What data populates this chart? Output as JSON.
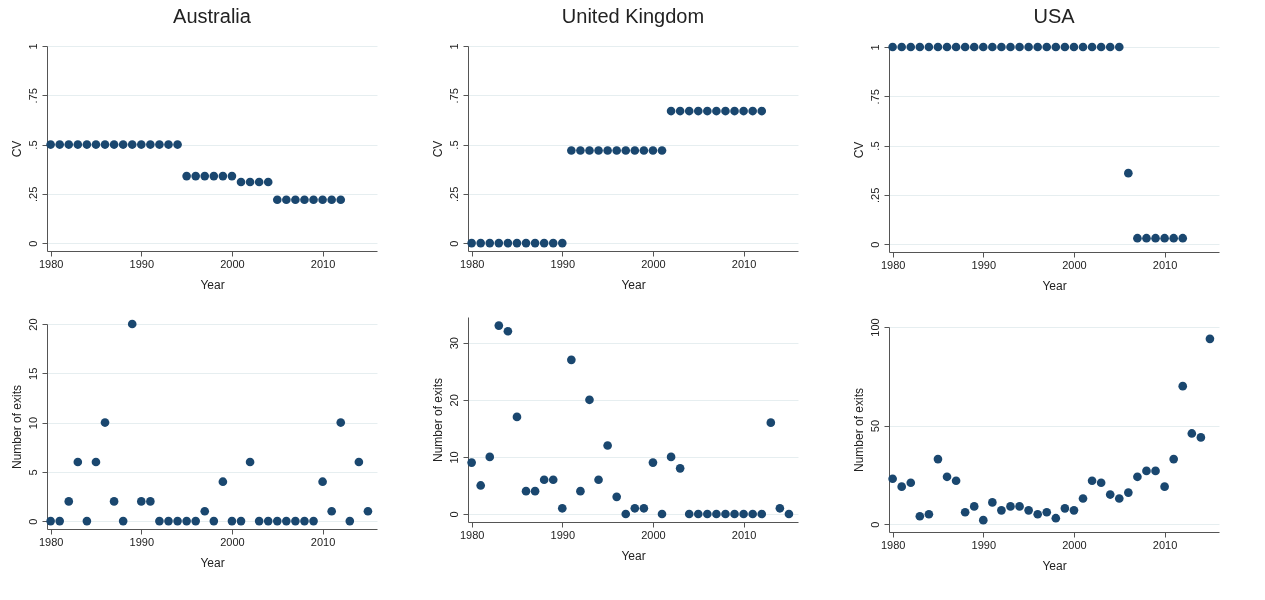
{
  "chart_data": [
    {
      "type": "scatter",
      "title": "Australia",
      "xlabel": "Year",
      "ylabel": "CV",
      "xlim": [
        1979.6,
        2016
      ],
      "xticks": [
        1980,
        1990,
        2000,
        2010
      ],
      "ylim": [
        -0.04,
        1
      ],
      "yticks": [
        0,
        {
          "value": 0.25,
          "label": ".25"
        },
        {
          "value": 0.5,
          "label": ".5"
        },
        {
          "value": 0.75,
          "label": ".75"
        },
        1
      ],
      "grid": "y",
      "marker": "circle",
      "x": [
        1980,
        1981,
        1982,
        1983,
        1984,
        1985,
        1986,
        1987,
        1988,
        1989,
        1990,
        1991,
        1992,
        1993,
        1994,
        1995,
        1996,
        1997,
        1998,
        1999,
        2000,
        2001,
        2002,
        2003,
        2004,
        2005,
        2006,
        2007,
        2008,
        2009,
        2010,
        2011,
        2012
      ],
      "series": [
        {
          "color": "#1a476f",
          "values": [
            0.5,
            0.5,
            0.5,
            0.5,
            0.5,
            0.5,
            0.5,
            0.5,
            0.5,
            0.5,
            0.5,
            0.5,
            0.5,
            0.5,
            0.5,
            0.34,
            0.34,
            0.34,
            0.34,
            0.34,
            0.34,
            0.31,
            0.31,
            0.31,
            0.31,
            0.22,
            0.22,
            0.22,
            0.22,
            0.22,
            0.22,
            0.22,
            0.22
          ]
        }
      ]
    },
    {
      "type": "scatter",
      "title": "United Kingdom",
      "xlabel": "Year",
      "ylabel": "CV",
      "xlim": [
        1979.6,
        2016
      ],
      "xticks": [
        1980,
        1990,
        2000,
        2010
      ],
      "ylim": [
        -0.04,
        1
      ],
      "yticks": [
        0,
        {
          "value": 0.25,
          "label": ".25"
        },
        {
          "value": 0.5,
          "label": ".5"
        },
        {
          "value": 0.75,
          "label": ".75"
        },
        1
      ],
      "grid": "y",
      "marker": "circle",
      "x": [
        1980,
        1981,
        1982,
        1983,
        1984,
        1985,
        1986,
        1987,
        1988,
        1989,
        1990,
        1991,
        1992,
        1993,
        1994,
        1995,
        1996,
        1997,
        1998,
        1999,
        2000,
        2001,
        2002,
        2003,
        2004,
        2005,
        2006,
        2007,
        2008,
        2009,
        2010,
        2011,
        2012
      ],
      "series": [
        {
          "color": "#1a476f",
          "values": [
            0,
            0,
            0,
            0,
            0,
            0,
            0,
            0,
            0,
            0,
            0,
            0.47,
            0.47,
            0.47,
            0.47,
            0.47,
            0.47,
            0.47,
            0.47,
            0.47,
            0.47,
            0.47,
            0.67,
            0.67,
            0.67,
            0.67,
            0.67,
            0.67,
            0.67,
            0.67,
            0.67,
            0.67,
            0.67
          ]
        }
      ]
    },
    {
      "type": "scatter",
      "title": "USA",
      "xlabel": "Year",
      "ylabel": "CV",
      "xlim": [
        1979.6,
        2016
      ],
      "xticks": [
        1980,
        1990,
        2000,
        2010
      ],
      "ylim": [
        -0.04,
        1
      ],
      "yticks": [
        0,
        {
          "value": 0.25,
          "label": ".25"
        },
        {
          "value": 0.5,
          "label": ".5"
        },
        {
          "value": 0.75,
          "label": ".75"
        },
        1
      ],
      "grid": "y",
      "marker": "circle",
      "x": [
        1980,
        1981,
        1982,
        1983,
        1984,
        1985,
        1986,
        1987,
        1988,
        1989,
        1990,
        1991,
        1992,
        1993,
        1994,
        1995,
        1996,
        1997,
        1998,
        1999,
        2000,
        2001,
        2002,
        2003,
        2004,
        2005,
        2006,
        2007,
        2008,
        2009,
        2010,
        2011,
        2012
      ],
      "series": [
        {
          "color": "#1a476f",
          "values": [
            1,
            1,
            1,
            1,
            1,
            1,
            1,
            1,
            1,
            1,
            1,
            1,
            1,
            1,
            1,
            1,
            1,
            1,
            1,
            1,
            1,
            1,
            1,
            1,
            1,
            1,
            0.36,
            0.03,
            0.03,
            0.03,
            0.03,
            0.03,
            0.03
          ]
        }
      ]
    },
    {
      "type": "scatter",
      "xlabel": "Year",
      "ylabel": "Number of exits",
      "xlim": [
        1979.6,
        2016
      ],
      "xticks": [
        1980,
        1990,
        2000,
        2010
      ],
      "ylim": [
        -0.8,
        20
      ],
      "yticks": [
        0,
        5,
        10,
        15,
        20
      ],
      "grid": "y",
      "marker": "circle",
      "x": [
        1980,
        1981,
        1982,
        1983,
        1984,
        1985,
        1986,
        1987,
        1988,
        1989,
        1990,
        1991,
        1992,
        1993,
        1994,
        1995,
        1996,
        1997,
        1998,
        1999,
        2000,
        2001,
        2002,
        2003,
        2004,
        2005,
        2006,
        2007,
        2008,
        2009,
        2010,
        2011,
        2012,
        2013,
        2014,
        2015
      ],
      "series": [
        {
          "color": "#1a476f",
          "values": [
            0,
            0,
            2,
            6,
            0,
            6,
            10,
            2,
            0,
            20,
            2,
            2,
            0,
            0,
            0,
            0,
            0,
            1,
            0,
            4,
            0,
            0,
            6,
            0,
            0,
            0,
            0,
            0,
            0,
            0,
            4,
            1,
            10,
            0,
            6,
            1
          ]
        }
      ]
    },
    {
      "type": "scatter",
      "xlabel": "Year",
      "ylabel": "Number of exits",
      "xlim": [
        1979.6,
        2016
      ],
      "xticks": [
        1980,
        1990,
        2000,
        2010
      ],
      "ylim": [
        -1.4,
        34.5
      ],
      "yticks": [
        0,
        10,
        20,
        30
      ],
      "grid": "y",
      "marker": "circle",
      "x": [
        1980,
        1981,
        1982,
        1983,
        1984,
        1985,
        1986,
        1987,
        1988,
        1989,
        1990,
        1991,
        1992,
        1993,
        1994,
        1995,
        1996,
        1997,
        1998,
        1999,
        2000,
        2001,
        2002,
        2003,
        2004,
        2005,
        2006,
        2007,
        2008,
        2009,
        2010,
        2011,
        2012,
        2013,
        2014,
        2015
      ],
      "series": [
        {
          "color": "#1a476f",
          "values": [
            9,
            5,
            10,
            33,
            32,
            17,
            4,
            4,
            6,
            6,
            1,
            27,
            4,
            20,
            6,
            12,
            3,
            0,
            1,
            1,
            9,
            0,
            10,
            8,
            0,
            0,
            0,
            0,
            0,
            0,
            0,
            0,
            0,
            16,
            1,
            0
          ]
        }
      ]
    },
    {
      "type": "scatter",
      "xlabel": "Year",
      "ylabel": "Number of exits",
      "xlim": [
        1979.6,
        2016
      ],
      "xticks": [
        1980,
        1990,
        2000,
        2010
      ],
      "ylim": [
        -4,
        100
      ],
      "yticks": [
        0,
        50,
        100
      ],
      "grid": "y",
      "marker": "circle",
      "x": [
        1980,
        1981,
        1982,
        1983,
        1984,
        1985,
        1986,
        1987,
        1988,
        1989,
        1990,
        1991,
        1992,
        1993,
        1994,
        1995,
        1996,
        1997,
        1998,
        1999,
        2000,
        2001,
        2002,
        2003,
        2004,
        2005,
        2006,
        2007,
        2008,
        2009,
        2010,
        2011,
        2012,
        2013,
        2014,
        2015
      ],
      "series": [
        {
          "color": "#1a476f",
          "values": [
            23,
            19,
            21,
            4,
            5,
            33,
            24,
            22,
            6,
            9,
            2,
            11,
            7,
            9,
            9,
            7,
            5,
            6,
            3,
            8,
            7,
            13,
            22,
            21,
            15,
            13,
            16,
            24,
            27,
            27,
            19,
            33,
            70,
            46,
            44,
            94
          ]
        }
      ]
    }
  ]
}
